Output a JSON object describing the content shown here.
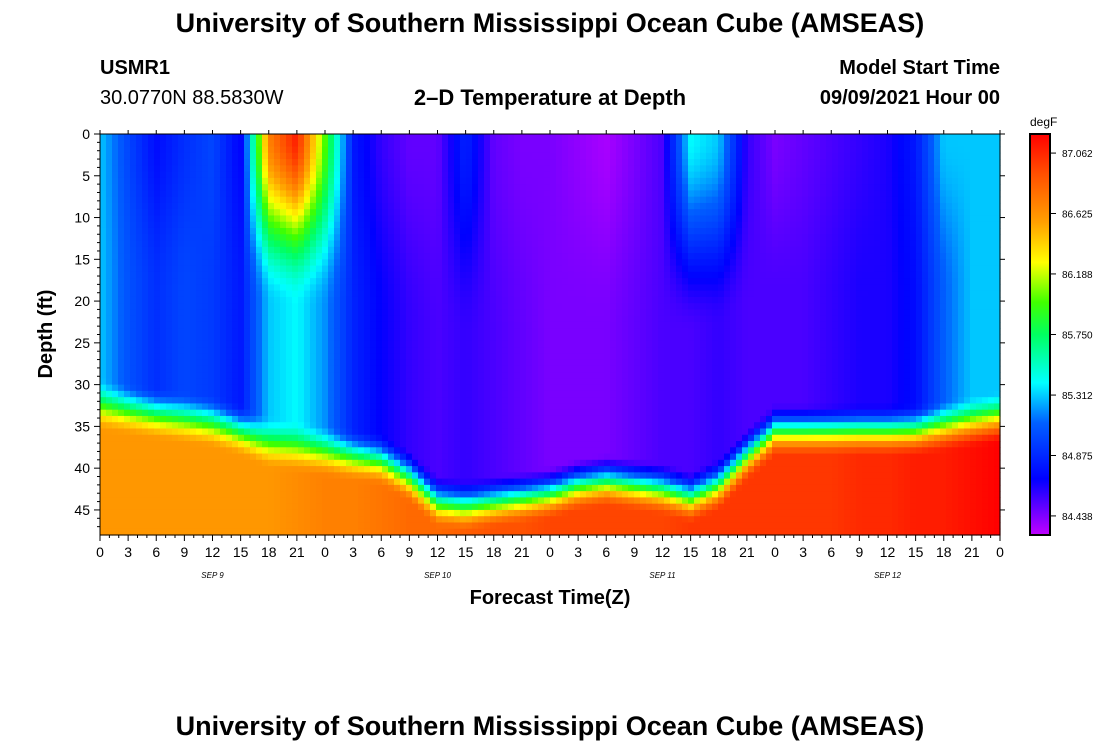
{
  "header": {
    "title": "University of Southern Mississippi Ocean Cube (AMSEAS)",
    "station_id": "USMR1",
    "station_coords": "30.0770N  88.5830W",
    "plot_title": "2–D Temperature at Depth",
    "model_label": "Model Start Time",
    "model_start": "09/09/2021 Hour 00"
  },
  "footer": {
    "title": "University of Southern Mississippi Ocean Cube (AMSEAS)"
  },
  "chart_data": {
    "type": "heatmap",
    "title": "2–D Temperature at Depth",
    "xlabel": "Forecast Time(Z)",
    "ylabel": "Depth (ft)",
    "xlim": [
      0,
      96
    ],
    "ylim": [
      48,
      0
    ],
    "x_tick_values": [
      0,
      3,
      6,
      9,
      12,
      15,
      18,
      21,
      24,
      27,
      30,
      33,
      36,
      39,
      42,
      45,
      48,
      51,
      54,
      57,
      60,
      63,
      66,
      69,
      72,
      75,
      78,
      81,
      84,
      87,
      90,
      93,
      96
    ],
    "x_tick_labels": [
      "0",
      "3",
      "6",
      "9",
      "12",
      "15",
      "18",
      "21",
      "0",
      "3",
      "6",
      "9",
      "12",
      "15",
      "18",
      "21",
      "0",
      "3",
      "6",
      "9",
      "12",
      "15",
      "18",
      "21",
      "0",
      "3",
      "6",
      "9",
      "12",
      "15",
      "18",
      "21",
      "0"
    ],
    "day_labels": [
      {
        "hour": 12,
        "label": "SEP 9"
      },
      {
        "hour": 36,
        "label": "SEP 10"
      },
      {
        "hour": 60,
        "label": "SEP 11"
      },
      {
        "hour": 84,
        "label": "SEP 12"
      }
    ],
    "y_ticks": [
      0,
      5,
      10,
      15,
      20,
      25,
      30,
      35,
      40,
      45
    ],
    "colorbar": {
      "unit": "degF",
      "min": 84.3,
      "max": 87.2,
      "labels": [
        "87.062",
        "86.625",
        "86.188",
        "85.750",
        "85.312",
        "84.875",
        "84.438"
      ]
    },
    "profiles": {
      "time_hours": [
        0,
        3,
        6,
        9,
        12,
        15,
        18,
        21,
        24,
        27,
        30,
        33,
        36,
        39,
        42,
        45,
        48,
        51,
        54,
        57,
        60,
        63,
        66,
        69,
        72,
        75,
        78,
        81,
        84,
        87,
        90,
        93,
        96
      ],
      "bottom_layer_depth_ft": [
        32.5,
        33,
        33.5,
        34,
        34.5,
        35.5,
        37,
        37.5,
        38,
        38.5,
        39,
        41,
        44,
        44.5,
        44,
        43.5,
        43,
        42,
        41.5,
        42,
        42.5,
        43.5,
        42,
        38.5,
        35.5,
        35.5,
        35.5,
        35.5,
        35.5,
        35.5,
        35,
        34.5,
        34
      ],
      "surface_temp_degF": [
        85.3,
        85.0,
        84.75,
        84.9,
        85.0,
        84.7,
        86.7,
        87.1,
        86.0,
        84.8,
        84.6,
        84.5,
        84.5,
        84.85,
        84.5,
        84.45,
        84.45,
        84.4,
        84.35,
        84.45,
        84.55,
        85.4,
        85.3,
        84.6,
        84.45,
        84.5,
        84.55,
        84.6,
        84.65,
        84.8,
        85.3,
        85.3,
        85.3
      ],
      "mid_temp_degF": [
        85.3,
        85.05,
        84.9,
        85.0,
        84.95,
        84.8,
        85.3,
        85.4,
        85.2,
        84.85,
        84.7,
        84.6,
        84.55,
        84.6,
        84.55,
        84.5,
        84.45,
        84.45,
        84.45,
        84.5,
        84.55,
        84.55,
        84.6,
        84.55,
        84.55,
        84.55,
        84.6,
        84.65,
        84.65,
        84.75,
        85.1,
        85.3,
        85.3
      ],
      "bottom_temp_degF": [
        86.6,
        86.6,
        86.6,
        86.6,
        86.6,
        86.6,
        86.6,
        86.65,
        86.7,
        86.7,
        86.75,
        86.8,
        86.8,
        86.85,
        86.9,
        86.9,
        86.95,
        86.95,
        86.95,
        86.95,
        86.95,
        87.0,
        87.0,
        87.0,
        87.0,
        87.0,
        87.0,
        87.05,
        87.05,
        87.1,
        87.1,
        87.15,
        87.2
      ]
    }
  }
}
